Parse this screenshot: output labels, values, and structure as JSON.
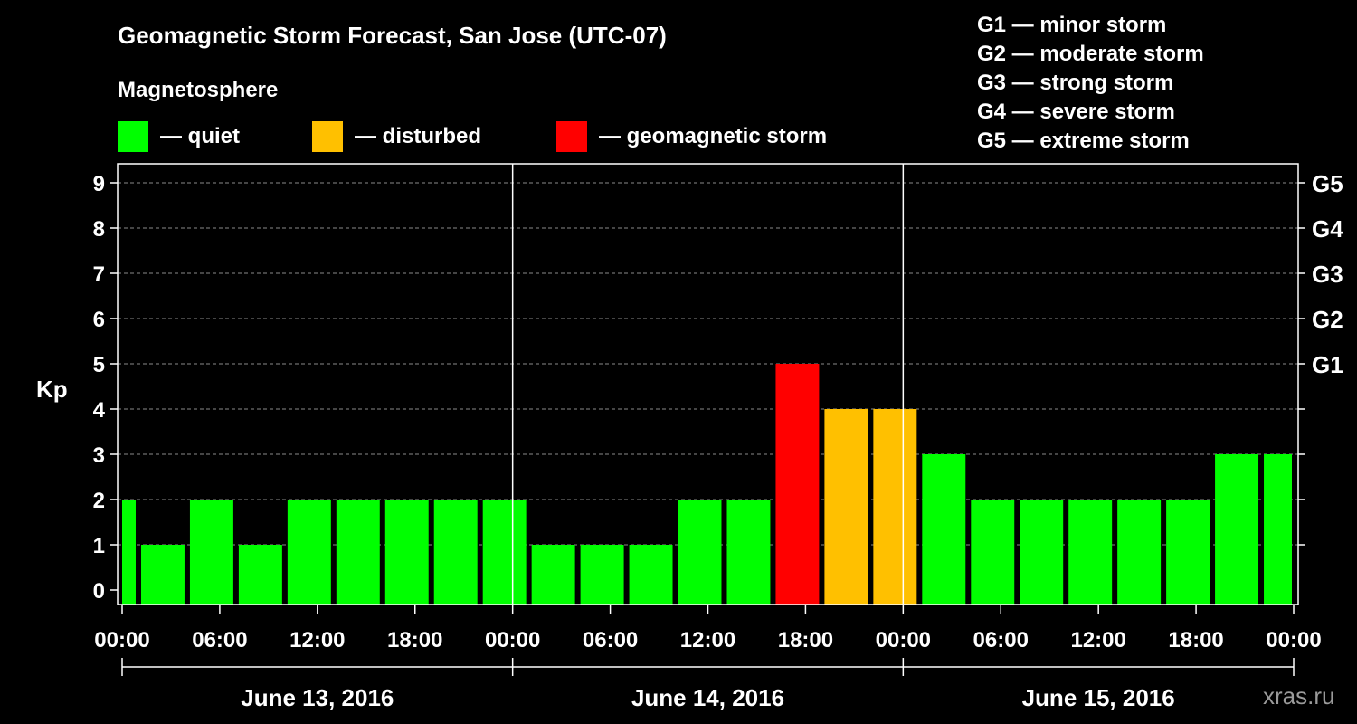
{
  "chart_data": {
    "type": "bar",
    "title": "Geomagnetic Storm Forecast, San Jose (UTC-07)",
    "ylabel": "Kp",
    "ylim": [
      0,
      9
    ],
    "yticks": [
      "0",
      "1",
      "2",
      "3",
      "4",
      "5",
      "6",
      "7",
      "8",
      "9"
    ],
    "storm_levels": [
      {
        "kp": 5,
        "label": "G1"
      },
      {
        "kp": 6,
        "label": "G2"
      },
      {
        "kp": 7,
        "label": "G3"
      },
      {
        "kp": 8,
        "label": "G4"
      },
      {
        "kp": 9,
        "label": "G5"
      }
    ],
    "storm_scale": [
      "G1 — minor storm",
      "G2 — moderate storm",
      "G3 — strong storm",
      "G4 — severe storm",
      "G5 — extreme storm"
    ],
    "legend_title": "Magnetosphere",
    "legend": [
      {
        "label": "— quiet",
        "color": "#00ff00"
      },
      {
        "label": "— disturbed",
        "color": "#ffc000"
      },
      {
        "label": "— geomagnetic storm",
        "color": "#ff0000"
      }
    ],
    "time_ticks": [
      "00:00",
      "06:00",
      "12:00",
      "18:00",
      "00:00",
      "06:00",
      "12:00",
      "18:00",
      "00:00",
      "06:00",
      "12:00",
      "18:00",
      "00:00"
    ],
    "days": [
      "June 13, 2016",
      "June 14, 2016",
      "June 15, 2016"
    ],
    "bar_interval_hours": 3,
    "first_bar_hour_offset": -2,
    "values": [
      2,
      1,
      2,
      1,
      2,
      2,
      2,
      2,
      2,
      1,
      1,
      1,
      2,
      2,
      5,
      4,
      4,
      3,
      2,
      2,
      2,
      2,
      2,
      3,
      3
    ],
    "colors": {
      "quiet": "#00ff00",
      "disturbed": "#ffc000",
      "storm": "#ff0000",
      "grid": "#8a8a8a",
      "axis": "#ffffff"
    }
  },
  "watermark": "xras.ru"
}
